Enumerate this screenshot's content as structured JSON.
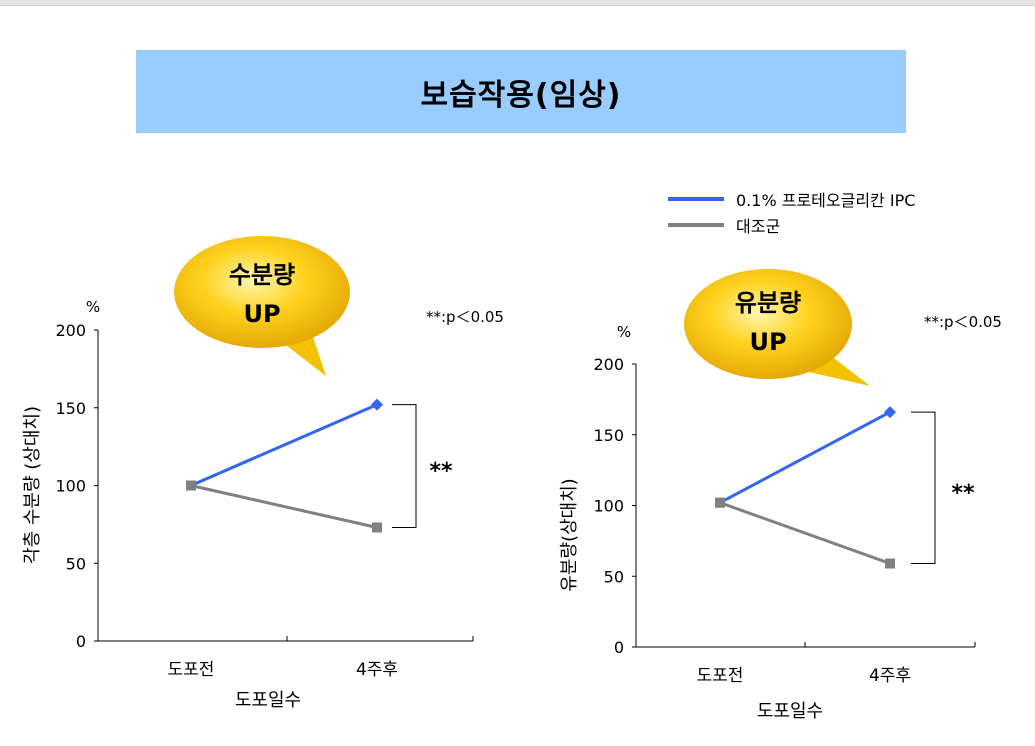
{
  "title": "보습작용(임상)",
  "legend": [
    {
      "label": "0.1% 프로테오글리칸 IPC",
      "color": "#3366ee"
    },
    {
      "label": "대조군",
      "color": "#808080"
    }
  ],
  "significance": "**",
  "pvalue_label": "**:p＜0.05",
  "chart_data": [
    {
      "type": "line",
      "bubble": [
        "수분량",
        "UP"
      ],
      "ylabel": "각층 수분량 (상대치)",
      "ylabel_unit": "%",
      "xlabel": "도포일수",
      "categories": [
        "도포전",
        "4주후"
      ],
      "ylim": [
        0,
        200
      ],
      "yticks": [
        "0",
        "50",
        "100",
        "150",
        "200"
      ],
      "series": [
        {
          "name": "0.1% 프로테오글리칸 IPC",
          "values": [
            100,
            152
          ],
          "color": "#3366ee",
          "marker": "diamond"
        },
        {
          "name": "대조군",
          "values": [
            100,
            73
          ],
          "color": "#808080",
          "marker": "square"
        }
      ]
    },
    {
      "type": "line",
      "bubble": [
        "유분량",
        "UP"
      ],
      "ylabel": "유분량(상대치)",
      "ylabel_unit": "%",
      "xlabel": "도포일수",
      "categories": [
        "도포전",
        "4주후"
      ],
      "ylim": [
        0,
        200
      ],
      "yticks": [
        "0",
        "50",
        "100",
        "150",
        "200"
      ],
      "series": [
        {
          "name": "0.1% 프로테오글리칸 IPC",
          "values": [
            102,
            166
          ],
          "color": "#3366ee",
          "marker": "diamond"
        },
        {
          "name": "대조군",
          "values": [
            102,
            59
          ],
          "color": "#808080",
          "marker": "square"
        }
      ]
    }
  ]
}
